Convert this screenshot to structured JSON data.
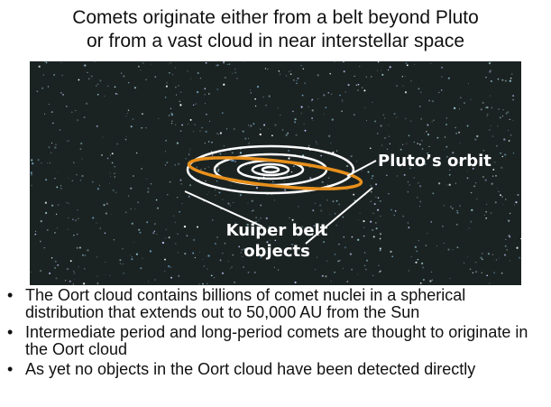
{
  "title": [
    "Comets originate either from a belt beyond Pluto",
    "or from a vast cloud in near interstellar space"
  ],
  "image": {
    "labels": {
      "pluto_orbit": "Pluto’s orbit",
      "kuiper_belt": [
        "Kuiper belt",
        "objects"
      ]
    }
  },
  "bullets": [
    "The Oort cloud contains billions of comet nuclei in a spherical distribution that extends out to 50,000 AU from the Sun",
    "Intermediate period and long-period comets are thought to originate in the Oort cloud",
    "As yet no objects in the Oort cloud have been detected directly"
  ]
}
